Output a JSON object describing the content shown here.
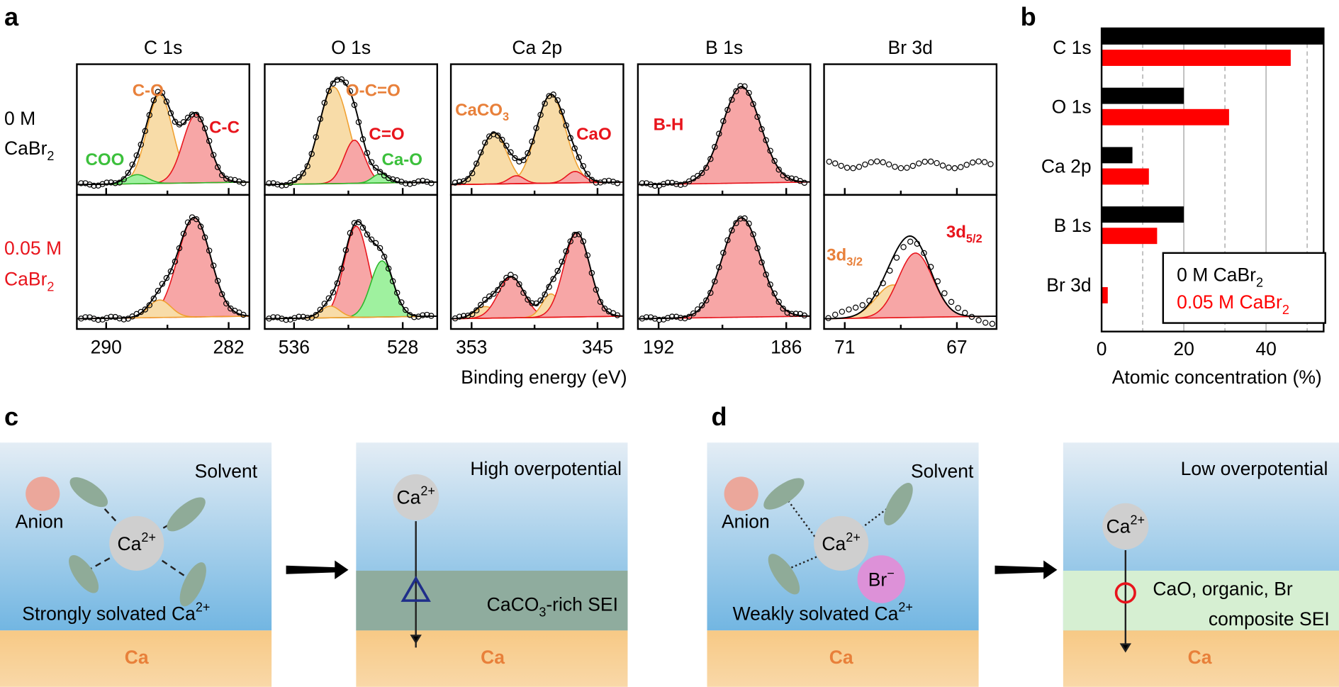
{
  "panel_a": {
    "letter": "a",
    "columns": [
      {
        "title": "C 1s",
        "ticks": [
          290,
          282
        ]
      },
      {
        "title": "O 1s",
        "ticks": [
          536,
          528
        ]
      },
      {
        "title": "Ca 2p",
        "ticks": [
          353,
          345
        ]
      },
      {
        "title": "B 1s",
        "ticks": [
          192,
          186
        ]
      },
      {
        "title": "Br 3d",
        "ticks": [
          71,
          67
        ]
      }
    ],
    "rows": [
      {
        "lines": [
          "0 M",
          [
            "CaBr",
            {
              "sub": "2"
            }
          ]
        ],
        "color": "#000000"
      },
      {
        "lines": [
          "0.05 M",
          [
            "CaBr",
            {
              "sub": "2"
            }
          ]
        ],
        "color": "#e8141c"
      }
    ],
    "peak_labels": [
      {
        "text": "C-O",
        "color": "#e8803a"
      },
      {
        "text": "C-C",
        "color": "#e8141c"
      },
      {
        "text": "COO",
        "color": "#3cc03c"
      },
      {
        "text": "O-C=O",
        "color": "#e8803a"
      },
      {
        "text": "C=O",
        "color": "#e8141c"
      },
      {
        "text": "Ca-O",
        "color": "#3cc03c"
      },
      {
        "text": [
          "CaCO",
          {
            "sub": "3"
          }
        ],
        "color": "#e8803a"
      },
      {
        "text": "CaO",
        "color": "#e8141c"
      },
      {
        "text": "B-H",
        "color": "#e8141c"
      },
      {
        "text": [
          "3d",
          {
            "sub": "3/2"
          }
        ],
        "color": "#e8803a"
      },
      {
        "text": [
          "3d",
          {
            "sub": "5/2"
          }
        ],
        "color": "#e8141c"
      }
    ],
    "x_label": "Binding energy (eV)"
  },
  "chart_data": {
    "type": "bar",
    "orientation": "horizontal",
    "letter": "b",
    "categories": [
      "C 1s",
      "O 1s",
      "Ca 2p",
      "B 1s",
      "Br 3d"
    ],
    "series": [
      {
        "name": [
          "0 M CaBr",
          {
            "sub": "2"
          }
        ],
        "color": "#000000",
        "values": [
          54,
          20,
          7.5,
          20,
          null
        ]
      },
      {
        "name": [
          "0.05 M CaBr",
          {
            "sub": "2"
          }
        ],
        "color": "#ff0000",
        "values": [
          46,
          31,
          11.5,
          13.5,
          1.5
        ]
      }
    ],
    "xlim": [
      0,
      54
    ],
    "xticks": [
      0,
      20,
      40
    ],
    "minor_grid": [
      10,
      30,
      50
    ],
    "grid": true,
    "x_label": "Atomic concentration (%)",
    "legend": "lower right"
  },
  "panel_c": {
    "letter": "c",
    "solvent": "Solvent",
    "anion": "Anion",
    "cation": [
      "Ca",
      {
        "sup": "2+"
      }
    ],
    "caption": [
      "Strongly solvated Ca",
      {
        "sup": "2+"
      }
    ],
    "metal": "Ca",
    "overpotential": "High overpotential",
    "cation2": [
      "Ca",
      {
        "sup": "2+"
      }
    ],
    "sei": [
      "CaCO",
      {
        "sub": "3"
      },
      "-rich SEI"
    ],
    "metal2": "Ca"
  },
  "panel_d": {
    "letter": "d",
    "solvent": "Solvent",
    "anion": "Anion",
    "cation": [
      "Ca",
      {
        "sup": "2+"
      }
    ],
    "bromide": [
      "Br",
      {
        "sup": "−"
      }
    ],
    "caption": [
      "Weakly solvated Ca",
      {
        "sup": "2+"
      }
    ],
    "metal": "Ca",
    "overpotential": "Low overpotential",
    "cation2": [
      "Ca",
      {
        "sup": "2+"
      }
    ],
    "sei_line1": "CaO, organic, Br",
    "sei_line2": "composite SEI",
    "metal2": "Ca"
  }
}
